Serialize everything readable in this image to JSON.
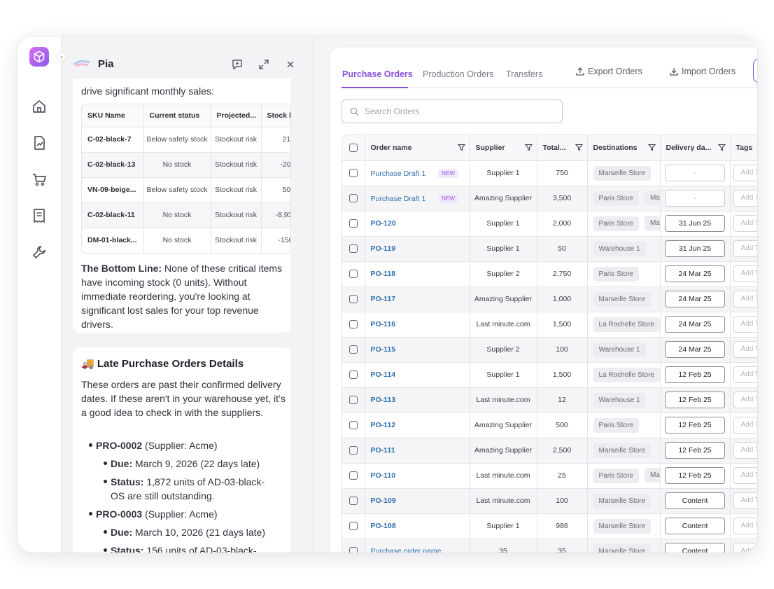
{
  "assistant": {
    "name": "Pia",
    "intro_text": "drive significant monthly sales:",
    "sku_table": {
      "headers": [
        "SKU Name",
        "Current status",
        "Projected...",
        "Stock le"
      ],
      "rows": [
        {
          "sku": "C-02-black-7",
          "status": "Below safety stock",
          "projected": "Stockout risk",
          "stock": "21"
        },
        {
          "sku": "C-02-black-13",
          "status": "No stock",
          "projected": "Stockout risk",
          "stock": "-20"
        },
        {
          "sku": "VN-09-beige...",
          "status": "Below safety stock",
          "projected": "Stockout risk",
          "stock": "50"
        },
        {
          "sku": "C-02-black-11",
          "status": "No stock",
          "projected": "Stockout risk",
          "stock": "-8,93"
        },
        {
          "sku": "DM-01-black...",
          "status": "No stock",
          "projected": "Stockout risk",
          "stock": "-150"
        }
      ]
    },
    "bottom_line_label": "The Bottom Line:",
    "bottom_line_text": " None of these critical items have incoming stock (0 units). Without immediate reordering, you're looking at significant lost sales for your top revenue drivers.",
    "late_title": "🚚 Late Purchase Orders Details",
    "late_intro": "These orders are past their confirmed delivery dates. If these aren't in your warehouse yet, it’s a good idea to check in with the suppliers.",
    "late_orders": [
      {
        "id": "PRO-0002",
        "supplier": " (Supplier: Acme)",
        "due_label": "Due:",
        "due": " March 9, 2026 (22 days late)",
        "status_label": "Status:",
        "status_line1": " 1,872 units of AD-03-black-",
        "status_line2": "OS are still outstanding."
      },
      {
        "id": "PRO-0003",
        "supplier": " (Supplier: Acme)",
        "due_label": "Due:",
        "due": " March 10, 2026 (21 days late)",
        "status_label": "Status:",
        "status_line1": " 156 units of AD-03-black-",
        "status_line2": ""
      }
    ]
  },
  "main": {
    "tabs": [
      "Purchase Orders",
      "Production Orders",
      "Transfers"
    ],
    "active_tab": "Purchase Orders",
    "export_label": "Export Orders",
    "import_label": "Import Orders",
    "search_placeholder": "Search Orders",
    "columns": [
      "Order name",
      "Supplier",
      "Total...",
      "Destinations",
      "Delivery da...",
      "Tags"
    ],
    "new_badge": "NEW",
    "tag_placeholder": "Add T",
    "orders": [
      {
        "name": "Purchase Draft 1",
        "draft": true,
        "supplier": "Supplier 1",
        "total": "750",
        "dest": [
          "Marseille Store"
        ],
        "delivery": "-"
      },
      {
        "name": "Purchase Draft 1",
        "draft": true,
        "supplier": "Amazing Supplier",
        "total": "3,500",
        "dest": [
          "Paris Store",
          "Mar"
        ],
        "delivery": "-"
      },
      {
        "name": "PO-120",
        "draft": false,
        "supplier": "Supplier 1",
        "total": "2,000",
        "dest": [
          "Paris Store",
          "Mar"
        ],
        "delivery": "31 Jun 25"
      },
      {
        "name": "PO-119",
        "draft": false,
        "supplier": "Supplier 1",
        "total": "50",
        "dest": [
          "Warehouse 1"
        ],
        "delivery": "31 Jun 25"
      },
      {
        "name": "PO-118",
        "draft": false,
        "supplier": "Supplier 2",
        "total": "2,750",
        "dest": [
          "Paris Store"
        ],
        "delivery": "24 Mar 25"
      },
      {
        "name": "PO-117",
        "draft": false,
        "supplier": "Amazing Supplier",
        "total": "1,000",
        "dest": [
          "Marseille Store"
        ],
        "delivery": "24 Mar 25"
      },
      {
        "name": "PO-116",
        "draft": false,
        "supplier": "Last minute.com",
        "total": "1,500",
        "dest": [
          "La Rochelle Store"
        ],
        "delivery": "24 Mar 25"
      },
      {
        "name": "PO-115",
        "draft": false,
        "supplier": "Supplier 2",
        "total": "100",
        "dest": [
          "Warehouse 1"
        ],
        "delivery": "24 Mar 25"
      },
      {
        "name": "PO-114",
        "draft": false,
        "supplier": "Supplier 1",
        "total": "1,500",
        "dest": [
          "La Rochelle Store"
        ],
        "delivery": "12 Feb 25"
      },
      {
        "name": "PO-113",
        "draft": false,
        "supplier": "Last minute.com",
        "total": "12",
        "dest": [
          "Warehouse 1"
        ],
        "delivery": "12 Feb 25"
      },
      {
        "name": "PO-112",
        "draft": false,
        "supplier": "Amazing Supplier",
        "total": "500",
        "dest": [
          "Paris Store"
        ],
        "delivery": "12 Feb 25"
      },
      {
        "name": "PO-111",
        "draft": false,
        "supplier": "Amazing Supplier",
        "total": "2,500",
        "dest": [
          "Marseille Store"
        ],
        "delivery": "12 Feb 25"
      },
      {
        "name": "PO-110",
        "draft": false,
        "supplier": "Last minute.com",
        "total": "25",
        "dest": [
          "Paris Store",
          "Mar"
        ],
        "delivery": "12 Feb 25"
      },
      {
        "name": "PO-109",
        "draft": false,
        "supplier": "Last minute.com",
        "total": "100",
        "dest": [
          "Marseille Store"
        ],
        "delivery": "Content"
      },
      {
        "name": "PO-108",
        "draft": false,
        "supplier": "Supplier 1",
        "total": "986",
        "dest": [
          "Marseille Store"
        ],
        "delivery": "Content"
      },
      {
        "name": "Purchase order name",
        "draft": true,
        "supplier": "35",
        "total": "35",
        "dest": [
          "Marseille Store"
        ],
        "delivery": "Content"
      }
    ]
  },
  "colors": {
    "accent": "#8a4fd8",
    "link": "#2f6fb0"
  }
}
